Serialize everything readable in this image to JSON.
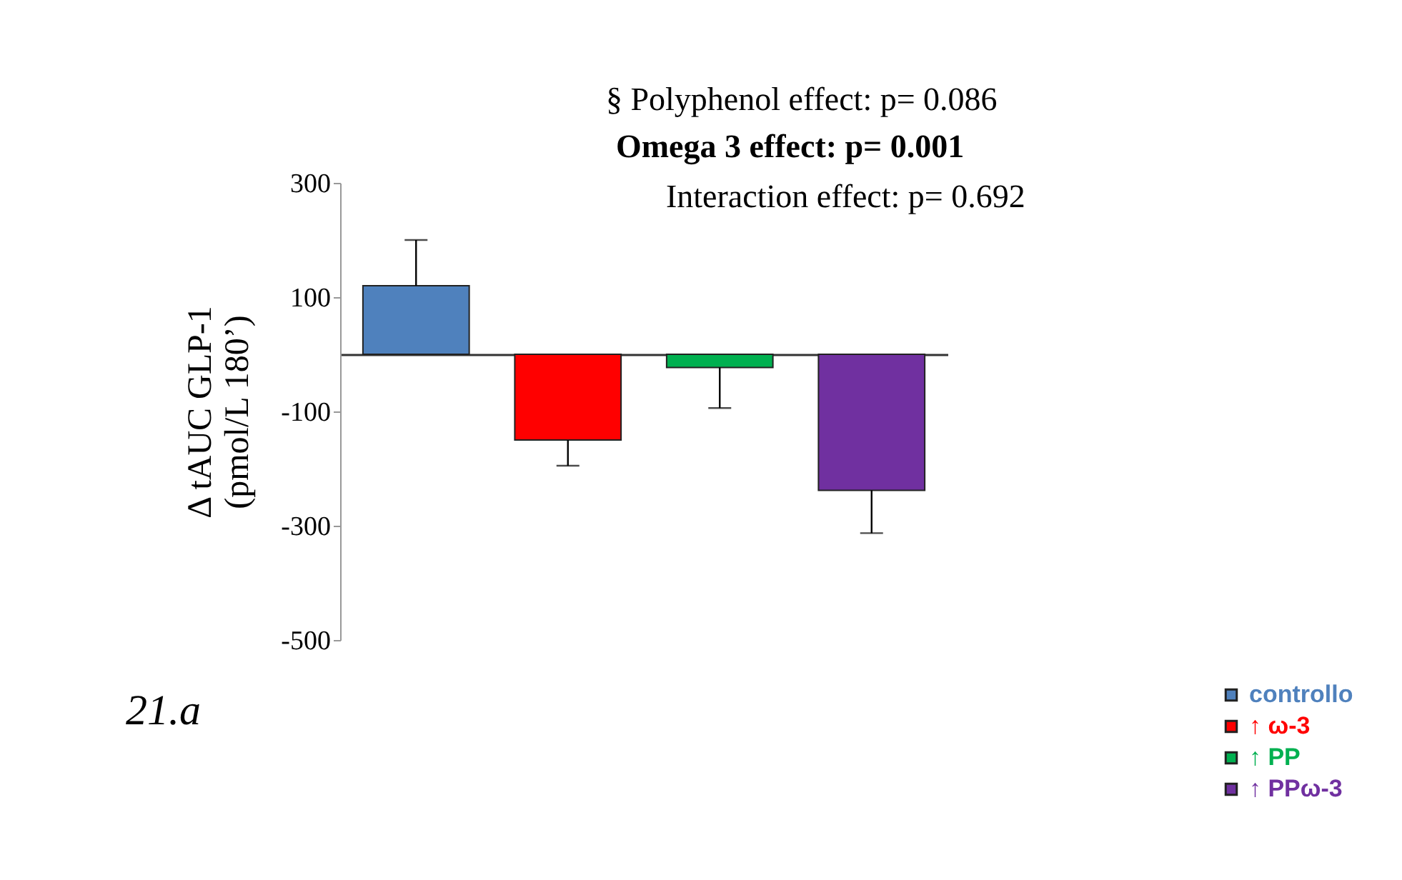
{
  "chart_data": {
    "type": "bar",
    "ylabel": "Δ tAUC GLP-1\n(pmol/L 180’)",
    "categories": [
      null,
      null,
      null,
      null
    ],
    "series": [
      {
        "name": "controllo",
        "color": "#4f81bd",
        "values": [
          120,
          null,
          null,
          null
        ],
        "errors": [
          [
            120,
            200
          ],
          null,
          null,
          null
        ]
      },
      {
        "name": "↑ ω-3",
        "color": "#ff0000",
        "values": [
          null,
          -150,
          null,
          null
        ],
        "errors": [
          null,
          [
            -195,
            -150
          ],
          null,
          null
        ]
      },
      {
        "name": "↑ PP",
        "color": "#00b050",
        "values": [
          null,
          null,
          -23,
          null
        ],
        "errors": [
          null,
          null,
          [
            -94,
            -23
          ],
          null
        ]
      },
      {
        "name": "↑ PPω-3",
        "color": "#7030a0",
        "values": [
          null,
          null,
          null,
          -238
        ],
        "errors": [
          null,
          null,
          null,
          [
            -313,
            -238
          ]
        ]
      }
    ],
    "ylim": [
      -500,
      300
    ],
    "yticks": [
      -500,
      -300,
      -100,
      100,
      300
    ],
    "grid": false,
    "legend": "bottom right",
    "tick_labels": "y",
    "annotations": [
      "§  Polyphenol effect: p= 0.086",
      "Omega 3 effect: p= 0.001",
      "Interaction effect: p= 0.692",
      "21.a"
    ]
  }
}
